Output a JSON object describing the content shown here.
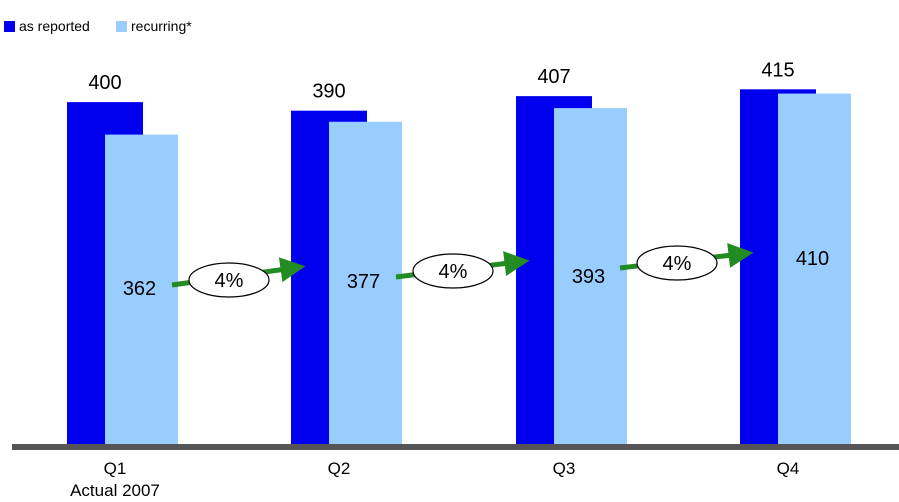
{
  "chart_data": {
    "type": "bar",
    "categories": [
      "Q1",
      "Q2",
      "Q3",
      "Q4"
    ],
    "category_sublabels": [
      "Actual 2007",
      "",
      "",
      ""
    ],
    "series": [
      {
        "name": "as reported",
        "values": [
          400,
          390,
          407,
          415
        ],
        "color": "#0000EE"
      },
      {
        "name": "recurring*",
        "values": [
          362,
          377,
          393,
          410
        ],
        "color": "#99CCFF"
      }
    ],
    "growth_annotations": [
      {
        "from": "Q1",
        "to": "Q2",
        "label": "4%"
      },
      {
        "from": "Q2",
        "to": "Q3",
        "label": "4%"
      },
      {
        "from": "Q3",
        "to": "Q4",
        "label": "4%"
      }
    ],
    "title": "",
    "xlabel": "",
    "ylabel": "",
    "ylim": [
      0,
      420
    ],
    "grid": false,
    "legend_position": "top-left",
    "arrow_color": "#228B22",
    "axis_color": "#555555"
  }
}
